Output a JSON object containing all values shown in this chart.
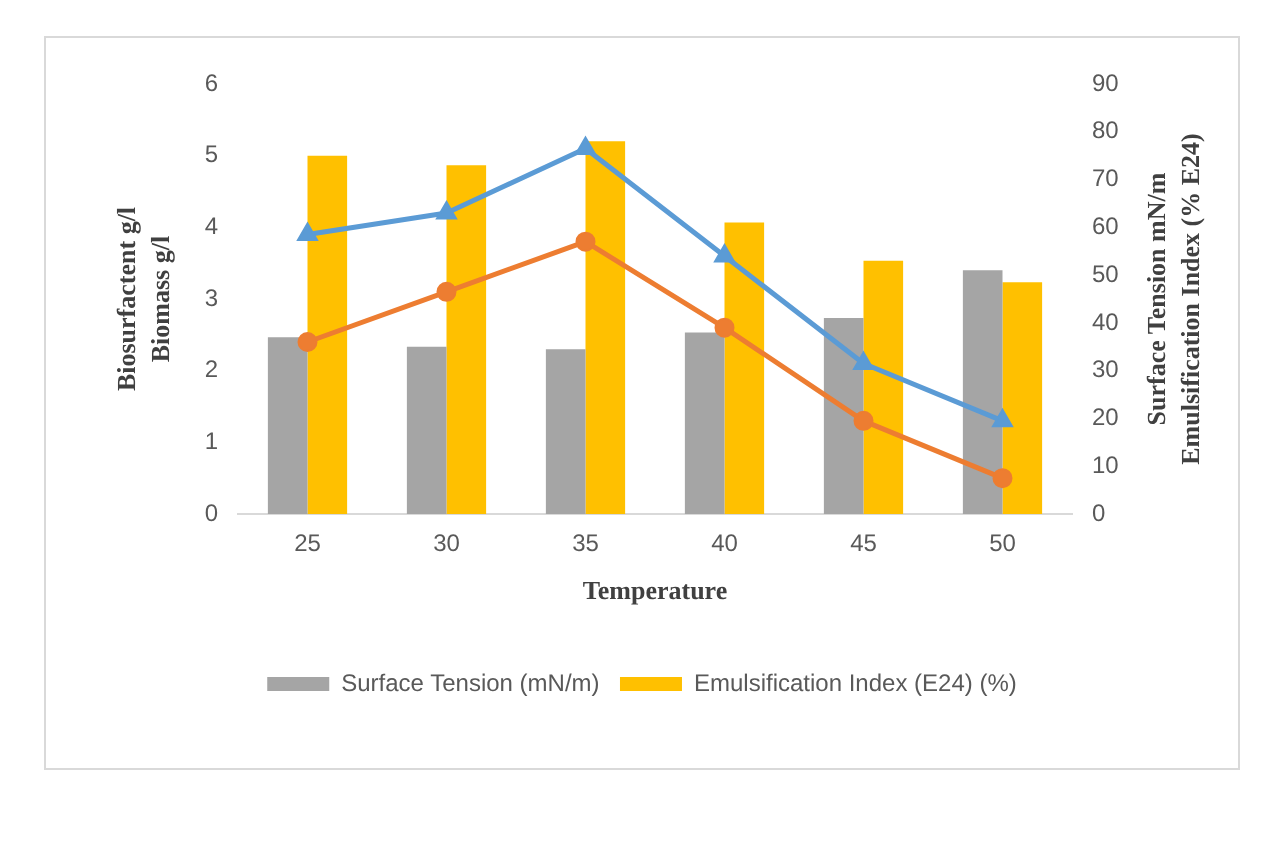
{
  "chart_data": {
    "type": "bar",
    "xlabel": "Temperature",
    "ylabel": "Biosurfactent g/l\nBiomass g/l",
    "y2label": "Surface Tension mN/m\nEmulsification Index (% E24)",
    "categories": [
      "25",
      "30",
      "35",
      "40",
      "45",
      "50"
    ],
    "series": [
      {
        "name": "Surface Tension (mN/m)",
        "color": "#a5a5a5",
        "axis": "y2",
        "values": [
          37,
          35,
          34.5,
          38,
          41,
          51
        ]
      },
      {
        "name": "Emulsification Index (E24) (%)",
        "color": "#ffc000",
        "axis": "y2",
        "values": [
          75,
          73,
          78,
          61,
          53,
          48.5
        ]
      },
      {
        "type": "line",
        "color": "#5b9bd5",
        "marker": "triangle",
        "values": [
          3.9,
          4.2,
          5.1,
          3.6,
          2.1,
          1.3
        ]
      },
      {
        "type": "line",
        "color": "#ed7d31",
        "marker": "circle",
        "values": [
          2.4,
          3.1,
          3.8,
          2.6,
          1.3,
          0.5
        ]
      }
    ],
    "ylim": [
      0,
      6
    ],
    "yticks": [
      0,
      1,
      2,
      3,
      4,
      5,
      6
    ],
    "y2lim": [
      0,
      90
    ],
    "y2ticks": [
      0,
      10,
      20,
      30,
      40,
      50,
      60,
      70,
      80,
      90
    ],
    "grid": false,
    "legend": "bottom"
  }
}
